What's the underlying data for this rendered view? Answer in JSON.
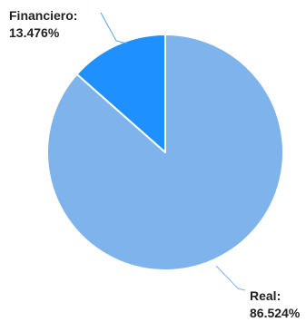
{
  "chart_data": {
    "type": "pie",
    "slices": [
      {
        "label": "Real",
        "value": 86.524,
        "value_label": "86.524%",
        "color": "#7fb3ec"
      },
      {
        "label": "Financiero",
        "value": 13.476,
        "value_label": "13.476%",
        "color": "#1e90ff"
      }
    ],
    "legend": "none",
    "slice_separator_color": "#ffffff"
  }
}
